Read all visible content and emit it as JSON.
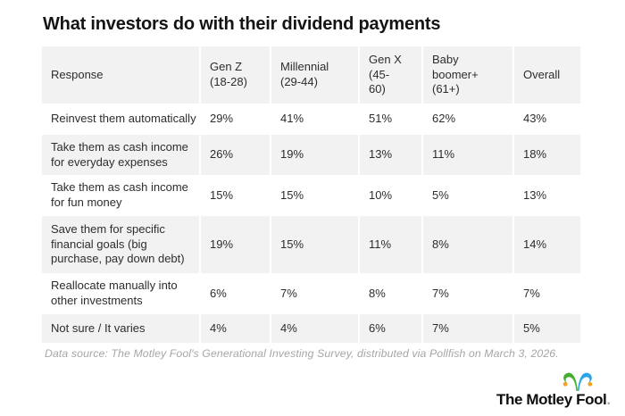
{
  "title": "What investors do with their dividend payments",
  "footnote": "Data source: The Motley Fool's Generational Investing Survey, distributed via Pollfish on March 3, 2026.",
  "logo": {
    "text": "The Motley Fool",
    "dot": ".",
    "hat_green": "#45ae2c",
    "hat_blue": "#2aa3e8",
    "hat_bell": "#f6a21c"
  },
  "colors": {
    "row_shade": "#f2f2f2",
    "body_text": "#2d2d2d",
    "title_text": "#141414",
    "footnote_text": "#a6a6a6"
  },
  "chart_data": {
    "type": "table",
    "title": "What investors do with their dividend payments",
    "columns": [
      "Response",
      "Gen Z\n(18-28)",
      "Millennial\n(29-44)",
      "Gen X\n(45-\n60)",
      "Baby\nboomer+\n(61+)",
      "Overall"
    ],
    "rows": [
      [
        "Reinvest them automatically",
        "29%",
        "41%",
        "51%",
        "62%",
        "43%"
      ],
      [
        "Take them as cash income for everyday expenses",
        "26%",
        "19%",
        "13%",
        "11%",
        "18%"
      ],
      [
        "Take them as cash income for fun money",
        "15%",
        "15%",
        "10%",
        "5%",
        "13%"
      ],
      [
        "Save them for specific financial goals (big purchase, pay down debt)",
        "19%",
        "15%",
        "11%",
        "8%",
        "14%"
      ],
      [
        "Reallocate manually into other investments",
        "6%",
        "7%",
        "8%",
        "7%",
        "7%"
      ],
      [
        "Not sure / It varies",
        "4%",
        "4%",
        "6%",
        "7%",
        "5%"
      ]
    ],
    "note": "Data source: The Motley Fool's Generational Investing Survey, distributed via Pollfish on March 3, 2026.",
    "layout": {
      "shaded_rows": "header and even data rows",
      "grid": "2px white column gaps",
      "legend": "none"
    }
  }
}
